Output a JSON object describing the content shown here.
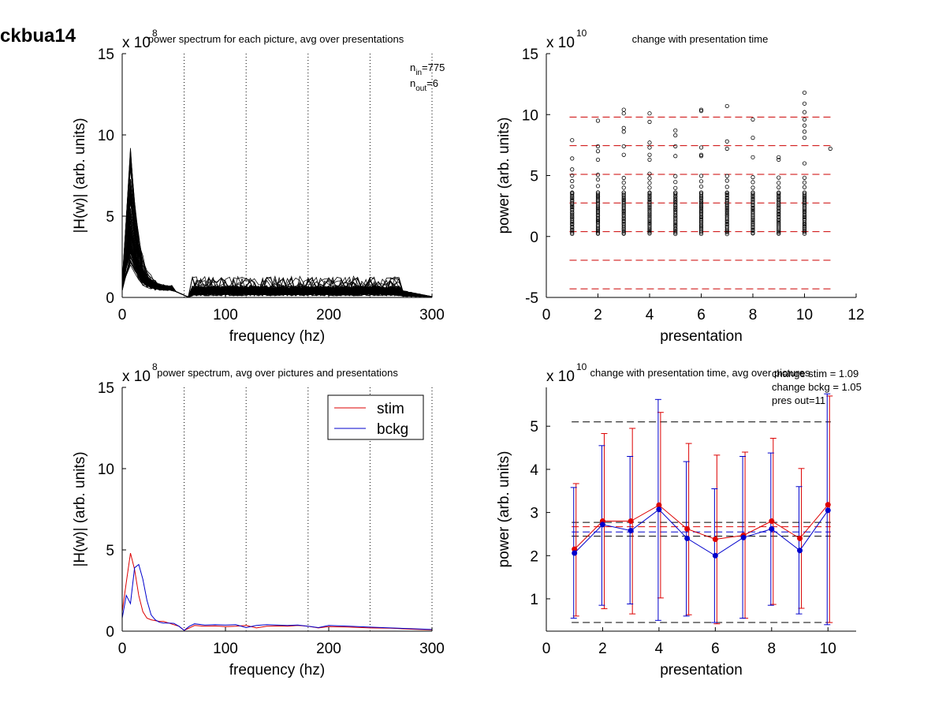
{
  "figure_label": "ckbua14",
  "chart_data": [
    {
      "id": "p1",
      "type": "line",
      "title": "power spectrum for each picture, avg over presentations",
      "xlabel": "frequency (hz)",
      "ylabel": "|H(w)| (arb. units)",
      "xlim": [
        0,
        300
      ],
      "ylim": [
        0,
        15
      ],
      "xticks": [
        0,
        100,
        200,
        300
      ],
      "yticks": [
        0,
        5,
        10,
        15
      ],
      "exponent_base": "x 10",
      "exponent_power": "8",
      "vlines": [
        60,
        120,
        180,
        240,
        300
      ],
      "annotations": [
        {
          "base": "n",
          "sub": "in",
          "rest": "=775"
        },
        {
          "base": "n",
          "sub": "out",
          "rest": "=6"
        }
      ],
      "series_count": 80,
      "series_note": "many overlapping black spectra, peak near 10 hz"
    },
    {
      "id": "p2",
      "type": "scatter",
      "title": "change with presentation time",
      "xlabel": "presentation",
      "ylabel": "power (arb. units)",
      "xlim": [
        0,
        12
      ],
      "ylim": [
        -5,
        15
      ],
      "xticks": [
        0,
        2,
        4,
        6,
        8,
        10,
        12
      ],
      "yticks": [
        -5,
        0,
        5,
        10,
        15
      ],
      "exponent_base": "x 10",
      "exponent_power": "10",
      "hlines": [
        9.8,
        7.45,
        5.1,
        2.75,
        0.4,
        -1.95,
        -4.3
      ],
      "hline_color": "#cc0000",
      "points": [
        {
          "x": 1,
          "max": 7.9,
          "outliers": [
            7.9,
            6.4,
            5.5
          ]
        },
        {
          "x": 2,
          "max": 9.5,
          "outliers": [
            9.5,
            7.4,
            7.0,
            6.3
          ]
        },
        {
          "x": 3,
          "max": 10.4,
          "outliers": [
            10.4,
            10.1,
            8.9,
            8.6,
            7.4,
            6.7
          ]
        },
        {
          "x": 4,
          "max": 10.1,
          "outliers": [
            10.1,
            9.4,
            7.7,
            7.3,
            6.7,
            6.3
          ]
        },
        {
          "x": 5,
          "max": 8.7,
          "outliers": [
            8.7,
            8.3,
            7.4,
            6.6
          ]
        },
        {
          "x": 6,
          "max": 10.4,
          "outliers": [
            10.4,
            10.3,
            7.3,
            6.7,
            6.6
          ]
        },
        {
          "x": 7,
          "max": 10.7,
          "outliers": [
            10.7,
            7.8,
            7.2
          ]
        },
        {
          "x": 8,
          "max": 9.6,
          "outliers": [
            9.6,
            8.1,
            6.5
          ]
        },
        {
          "x": 9,
          "max": 6.5,
          "outliers": [
            6.5,
            6.3
          ]
        },
        {
          "x": 10,
          "max": 11.8,
          "outliers": [
            11.8,
            10.9,
            10.2,
            9.6,
            9.1,
            8.6,
            8.1,
            6.0
          ]
        },
        {
          "x": 11,
          "max": 7.2,
          "outliers": [
            7.2
          ]
        }
      ]
    },
    {
      "id": "p3",
      "type": "line",
      "title": "power spectrum, avg over pictures and presentations",
      "xlabel": "frequency (hz)",
      "ylabel": "|H(w)| (arb. units)",
      "xlim": [
        0,
        300
      ],
      "ylim": [
        0,
        15
      ],
      "xticks": [
        0,
        100,
        200,
        300
      ],
      "yticks": [
        0,
        5,
        10,
        15
      ],
      "exponent_base": "x 10",
      "exponent_power": "8",
      "vlines": [
        60,
        120,
        180,
        240,
        300
      ],
      "legend": "top-right",
      "series": [
        {
          "name": "stim",
          "color": "#dd0000",
          "x": [
            0,
            4,
            8,
            12,
            16,
            20,
            24,
            28,
            32,
            36,
            40,
            45,
            50,
            55,
            60,
            65,
            70,
            80,
            90,
            100,
            110,
            120,
            130,
            140,
            150,
            160,
            170,
            180,
            190,
            200,
            220,
            240,
            260,
            280,
            300
          ],
          "y": [
            1.2,
            3.0,
            4.8,
            3.8,
            2.2,
            1.2,
            0.8,
            0.7,
            0.65,
            0.6,
            0.6,
            0.5,
            0.4,
            0.3,
            0.05,
            0.2,
            0.35,
            0.3,
            0.32,
            0.28,
            0.3,
            0.35,
            0.2,
            0.3,
            0.32,
            0.3,
            0.35,
            0.3,
            0.2,
            0.28,
            0.25,
            0.2,
            0.18,
            0.12,
            0.08
          ]
        },
        {
          "name": "bckg",
          "color": "#0000cc",
          "x": [
            0,
            4,
            8,
            12,
            16,
            20,
            24,
            28,
            32,
            36,
            40,
            45,
            50,
            55,
            60,
            65,
            70,
            80,
            90,
            100,
            110,
            120,
            130,
            140,
            150,
            160,
            170,
            180,
            190,
            200,
            220,
            240,
            260,
            280,
            300
          ],
          "y": [
            0.8,
            2.2,
            1.7,
            3.9,
            4.1,
            3.2,
            1.9,
            1.0,
            0.7,
            0.55,
            0.5,
            0.5,
            0.48,
            0.3,
            0.05,
            0.3,
            0.45,
            0.38,
            0.4,
            0.38,
            0.4,
            0.22,
            0.35,
            0.4,
            0.38,
            0.35,
            0.38,
            0.3,
            0.22,
            0.35,
            0.3,
            0.25,
            0.2,
            0.15,
            0.1
          ]
        }
      ]
    },
    {
      "id": "p4",
      "type": "line",
      "title": "change with presentation time, avg over pictures",
      "xlabel": "presentation",
      "ylabel": "power (arb. units)",
      "xlim": [
        0,
        11
      ],
      "ylim": [
        0.25,
        5.9
      ],
      "xticks": [
        0,
        2,
        4,
        6,
        8,
        10
      ],
      "yticks": [
        1,
        2,
        3,
        4,
        5
      ],
      "exponent_base": "x 10",
      "exponent_power": "10",
      "annotation_lines": [
        "change stim = 1.09",
        "change bckg = 1.05",
        "pres out=11"
      ],
      "hlines": [
        {
          "y": 5.1,
          "color": "#000000",
          "x0": 0.9,
          "x1": 10.1
        },
        {
          "y": 2.77,
          "color": "#000000",
          "x0": 0.9,
          "x1": 10.1
        },
        {
          "y": 2.67,
          "color": "#dd0000",
          "x0": 0.9,
          "x1": 10.1
        },
        {
          "y": 2.55,
          "color": "#0000cc",
          "x0": 0.9,
          "x1": 10.1
        },
        {
          "y": 2.45,
          "color": "#000000",
          "x0": 0.9,
          "x1": 10.1
        },
        {
          "y": 0.45,
          "color": "#000000",
          "x0": 0.9,
          "x1": 10.1
        }
      ],
      "series": [
        {
          "name": "stim",
          "color": "#dd0000",
          "x": [
            1,
            2,
            3,
            4,
            5,
            6,
            7,
            8,
            9,
            10
          ],
          "y": [
            2.15,
            2.8,
            2.8,
            3.17,
            2.62,
            2.38,
            2.47,
            2.8,
            2.4,
            3.18
          ],
          "err_low": [
            0.6,
            0.77,
            0.65,
            1.02,
            0.63,
            0.42,
            0.55,
            0.87,
            0.78,
            0.45
          ],
          "err_high": [
            3.67,
            4.83,
            4.95,
            5.32,
            4.6,
            4.33,
            4.4,
            4.72,
            4.02,
            5.7
          ]
        },
        {
          "name": "bckg",
          "color": "#0000cc",
          "x": [
            1,
            2,
            3,
            4,
            5,
            6,
            7,
            8,
            9,
            10
          ],
          "y": [
            2.06,
            2.72,
            2.58,
            3.07,
            2.4,
            2.0,
            2.42,
            2.62,
            2.12,
            3.05
          ],
          "err_low": [
            0.55,
            0.85,
            0.88,
            0.5,
            0.6,
            0.45,
            0.55,
            0.85,
            0.65,
            0.4
          ],
          "err_high": [
            3.58,
            4.55,
            4.3,
            5.62,
            4.18,
            3.55,
            4.3,
            4.38,
            3.6,
            5.75
          ]
        }
      ]
    }
  ]
}
